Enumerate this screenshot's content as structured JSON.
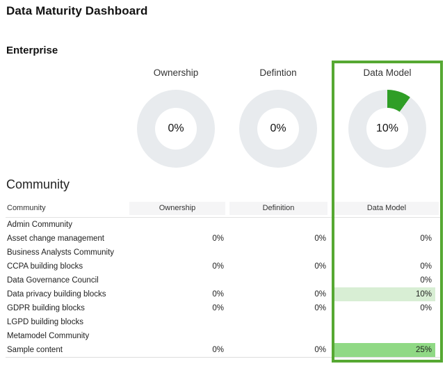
{
  "page": {
    "title": "Data Maturity Dashboard"
  },
  "enterprise": {
    "heading": "Enterprise",
    "charts": [
      {
        "title": "Ownership",
        "value": "0%",
        "percent": 0,
        "highlighted": false
      },
      {
        "title": "Defintion",
        "value": "0%",
        "percent": 0,
        "highlighted": false
      },
      {
        "title": "Data Model",
        "value": "10%",
        "percent": 10,
        "highlighted": true
      }
    ]
  },
  "community": {
    "heading": "Community",
    "table": {
      "columns": [
        "Community",
        "Ownership",
        "Definition",
        "Data Model"
      ],
      "rows": [
        {
          "name": "Admin Community",
          "ownership": "",
          "definition": "",
          "data_model": "",
          "data_model_highlight": "none"
        },
        {
          "name": "Asset change management",
          "ownership": "0%",
          "definition": "0%",
          "data_model": "0%",
          "data_model_highlight": "none"
        },
        {
          "name": "Business Analysts Community",
          "ownership": "",
          "definition": "",
          "data_model": "",
          "data_model_highlight": "none"
        },
        {
          "name": "CCPA building blocks",
          "ownership": "0%",
          "definition": "0%",
          "data_model": "0%",
          "data_model_highlight": "none"
        },
        {
          "name": "Data Governance Council",
          "ownership": "",
          "definition": "",
          "data_model": "0%",
          "data_model_highlight": "none"
        },
        {
          "name": "Data privacy building blocks",
          "ownership": "0%",
          "definition": "0%",
          "data_model": "10%",
          "data_model_highlight": "light"
        },
        {
          "name": "GDPR building blocks",
          "ownership": "0%",
          "definition": "0%",
          "data_model": "0%",
          "data_model_highlight": "none"
        },
        {
          "name": "LGPD building blocks",
          "ownership": "",
          "definition": "",
          "data_model": "",
          "data_model_highlight": "none"
        },
        {
          "name": "Metamodel Community",
          "ownership": "",
          "definition": "",
          "data_model": "",
          "data_model_highlight": "none"
        },
        {
          "name": "Sample content",
          "ownership": "0%",
          "definition": "0%",
          "data_model": "25%",
          "data_model_highlight": "strong"
        }
      ]
    }
  },
  "colors": {
    "accent_green_border": "#56a832",
    "donut_slice_green": "#2f9e26",
    "donut_track_gray": "#e8ebee",
    "cell_highlight_light": "#d8eed4",
    "cell_highlight_strong": "#90d985",
    "header_cell_bg": "#f5f5f6"
  },
  "chart_data": [
    {
      "type": "pie",
      "variant": "donut",
      "title": "Ownership",
      "values": [
        {
          "label": "complete",
          "value": 0
        }
      ],
      "center_label": "0%"
    },
    {
      "type": "pie",
      "variant": "donut",
      "title": "Defintion",
      "values": [
        {
          "label": "complete",
          "value": 0
        }
      ],
      "center_label": "0%"
    },
    {
      "type": "pie",
      "variant": "donut",
      "title": "Data Model",
      "values": [
        {
          "label": "complete",
          "value": 10
        }
      ],
      "center_label": "10%",
      "highlighted": true
    },
    {
      "type": "table",
      "title": "Community",
      "columns": [
        "Community",
        "Ownership",
        "Definition",
        "Data Model"
      ],
      "rows": [
        [
          "Admin Community",
          "",
          "",
          ""
        ],
        [
          "Asset change management",
          "0%",
          "0%",
          "0%"
        ],
        [
          "Business Analysts Community",
          "",
          "",
          ""
        ],
        [
          "CCPA building blocks",
          "0%",
          "0%",
          "0%"
        ],
        [
          "Data Governance Council",
          "",
          "",
          "0%"
        ],
        [
          "Data privacy building blocks",
          "0%",
          "0%",
          "10%"
        ],
        [
          "GDPR building blocks",
          "0%",
          "0%",
          "0%"
        ],
        [
          "LGPD building blocks",
          "",
          "",
          ""
        ],
        [
          "Metamodel Community",
          "",
          "",
          ""
        ],
        [
          "Sample content",
          "0%",
          "0%",
          "25%"
        ]
      ]
    }
  ]
}
